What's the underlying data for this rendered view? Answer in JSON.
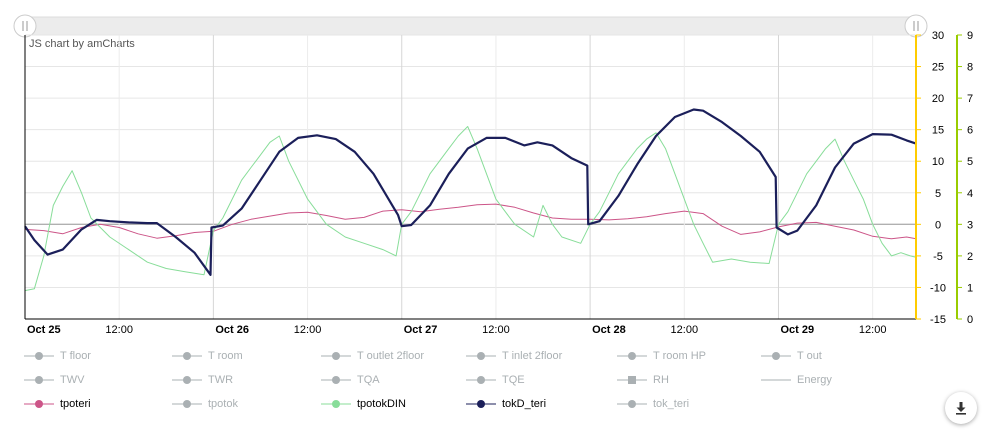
{
  "credit": "JS chart by amCharts",
  "chart_data": {
    "type": "line",
    "x_ticks": [
      {
        "label": "Oct 25",
        "bold": true,
        "day": 0
      },
      {
        "label": "12:00",
        "bold": false,
        "day": 0.5
      },
      {
        "label": "Oct 26",
        "bold": true,
        "day": 1
      },
      {
        "label": "12:00",
        "bold": false,
        "day": 1.5
      },
      {
        "label": "Oct 27",
        "bold": true,
        "day": 2
      },
      {
        "label": "12:00",
        "bold": false,
        "day": 2.5
      },
      {
        "label": "Oct 28",
        "bold": true,
        "day": 3
      },
      {
        "label": "12:00",
        "bold": false,
        "day": 3.5
      },
      {
        "label": "Oct 29",
        "bold": true,
        "day": 4
      },
      {
        "label": "12:00",
        "bold": false,
        "day": 4.5
      }
    ],
    "x_range_days": [
      0,
      4.73
    ],
    "y_left": {
      "min": -15,
      "max": 30,
      "ticks": [
        30,
        25,
        20,
        15,
        10,
        5,
        0,
        -5,
        -10,
        -15
      ],
      "color": "#ffcc00"
    },
    "y_right": {
      "min": 0,
      "max": 9,
      "ticks": [
        9,
        8,
        7,
        6,
        5,
        4,
        3,
        2,
        1,
        0
      ],
      "color": "#99cc00"
    },
    "grid": true,
    "legend_position": "bottom",
    "series": [
      {
        "name": "tpoteri",
        "color": "#cc5588",
        "visible": true,
        "axis": "left",
        "points": [
          [
            0,
            -0.8
          ],
          [
            0.1,
            -1
          ],
          [
            0.2,
            -1.5
          ],
          [
            0.3,
            -0.5
          ],
          [
            0.4,
            0
          ],
          [
            0.5,
            -0.5
          ],
          [
            0.6,
            -1.5
          ],
          [
            0.7,
            -2.2
          ],
          [
            0.8,
            -1.8
          ],
          [
            0.9,
            -1.3
          ],
          [
            1.0,
            -1.1
          ],
          [
            1.1,
            0
          ],
          [
            1.2,
            0.8
          ],
          [
            1.3,
            1.3
          ],
          [
            1.4,
            1.8
          ],
          [
            1.5,
            1.9
          ],
          [
            1.6,
            1.4
          ],
          [
            1.7,
            0.8
          ],
          [
            1.8,
            1.1
          ],
          [
            1.9,
            2.1
          ],
          [
            2.0,
            2.3
          ],
          [
            2.1,
            2.0
          ],
          [
            2.2,
            2.4
          ],
          [
            2.3,
            2.7
          ],
          [
            2.4,
            3.1
          ],
          [
            2.5,
            3.2
          ],
          [
            2.6,
            2.7
          ],
          [
            2.7,
            1.8
          ],
          [
            2.8,
            1.0
          ],
          [
            2.9,
            0.8
          ],
          [
            3.0,
            0.8
          ],
          [
            3.1,
            0.7
          ],
          [
            3.2,
            0.9
          ],
          [
            3.3,
            1.2
          ],
          [
            3.4,
            1.7
          ],
          [
            3.5,
            2.1
          ],
          [
            3.6,
            1.7
          ],
          [
            3.7,
            -0.3
          ],
          [
            3.8,
            -1.6
          ],
          [
            3.9,
            -1.2
          ],
          [
            4.0,
            -0.4
          ],
          [
            4.1,
            0.2
          ],
          [
            4.2,
            0.3
          ],
          [
            4.3,
            -0.3
          ],
          [
            4.4,
            -0.9
          ],
          [
            4.5,
            -1.9
          ],
          [
            4.6,
            -2.3
          ],
          [
            4.68,
            -2.0
          ],
          [
            4.73,
            -2.3
          ]
        ]
      },
      {
        "name": "tpotokDIN",
        "color": "#88dd99",
        "visible": true,
        "axis": "left",
        "points": [
          [
            0,
            -10.5
          ],
          [
            0.05,
            -10.2
          ],
          [
            0.1,
            -5
          ],
          [
            0.15,
            3
          ],
          [
            0.2,
            6
          ],
          [
            0.25,
            8.5
          ],
          [
            0.3,
            5
          ],
          [
            0.35,
            1
          ],
          [
            0.45,
            -2
          ],
          [
            0.55,
            -4
          ],
          [
            0.65,
            -6
          ],
          [
            0.75,
            -7
          ],
          [
            0.85,
            -7.5
          ],
          [
            0.95,
            -8
          ],
          [
            1.0,
            -1
          ],
          [
            1.05,
            1
          ],
          [
            1.1,
            4
          ],
          [
            1.15,
            7
          ],
          [
            1.2,
            9
          ],
          [
            1.25,
            11
          ],
          [
            1.3,
            13
          ],
          [
            1.35,
            14
          ],
          [
            1.4,
            10
          ],
          [
            1.5,
            4
          ],
          [
            1.6,
            0
          ],
          [
            1.7,
            -2
          ],
          [
            1.8,
            -3
          ],
          [
            1.9,
            -4
          ],
          [
            1.97,
            -5
          ],
          [
            2.0,
            0
          ],
          [
            2.05,
            2
          ],
          [
            2.1,
            5
          ],
          [
            2.15,
            8
          ],
          [
            2.2,
            10
          ],
          [
            2.25,
            12
          ],
          [
            2.3,
            14
          ],
          [
            2.35,
            15.5
          ],
          [
            2.4,
            12
          ],
          [
            2.45,
            8
          ],
          [
            2.5,
            4
          ],
          [
            2.55,
            2
          ],
          [
            2.6,
            0
          ],
          [
            2.7,
            -2
          ],
          [
            2.75,
            3
          ],
          [
            2.8,
            0
          ],
          [
            2.85,
            -2
          ],
          [
            2.95,
            -3
          ],
          [
            3.0,
            0
          ],
          [
            3.05,
            2
          ],
          [
            3.1,
            5
          ],
          [
            3.15,
            8
          ],
          [
            3.2,
            10
          ],
          [
            3.25,
            12
          ],
          [
            3.3,
            13.5
          ],
          [
            3.35,
            14.5
          ],
          [
            3.4,
            12
          ],
          [
            3.45,
            8
          ],
          [
            3.5,
            4
          ],
          [
            3.55,
            0
          ],
          [
            3.6,
            -3
          ],
          [
            3.65,
            -6
          ],
          [
            3.75,
            -5.5
          ],
          [
            3.85,
            -6
          ],
          [
            3.95,
            -6.2
          ],
          [
            4.0,
            0
          ],
          [
            4.05,
            2
          ],
          [
            4.1,
            5
          ],
          [
            4.15,
            8
          ],
          [
            4.2,
            10
          ],
          [
            4.25,
            12
          ],
          [
            4.3,
            13.5
          ],
          [
            4.35,
            10
          ],
          [
            4.4,
            7
          ],
          [
            4.45,
            4
          ],
          [
            4.5,
            0
          ],
          [
            4.55,
            -3
          ],
          [
            4.6,
            -5
          ],
          [
            4.65,
            -4.5
          ],
          [
            4.7,
            -5
          ],
          [
            4.73,
            -5.2
          ]
        ]
      },
      {
        "name": "tokD_teri",
        "color": "#1b1f5a",
        "visible": true,
        "axis": "left",
        "points": [
          [
            0,
            -0.3
          ],
          [
            0.05,
            -2.5
          ],
          [
            0.12,
            -4.8
          ],
          [
            0.2,
            -4
          ],
          [
            0.3,
            -0.8
          ],
          [
            0.38,
            0.7
          ],
          [
            0.45,
            0.5
          ],
          [
            0.55,
            0.3
          ],
          [
            0.65,
            0.2
          ],
          [
            0.7,
            0.2
          ],
          [
            0.8,
            -2
          ],
          [
            0.9,
            -4.5
          ],
          [
            0.985,
            -8
          ],
          [
            0.99,
            -0.5
          ],
          [
            1.05,
            -0.2
          ],
          [
            1.15,
            2.5
          ],
          [
            1.25,
            7
          ],
          [
            1.35,
            11.5
          ],
          [
            1.45,
            13.7
          ],
          [
            1.55,
            14.1
          ],
          [
            1.65,
            13.5
          ],
          [
            1.75,
            11.5
          ],
          [
            1.85,
            8
          ],
          [
            1.95,
            3
          ],
          [
            1.98,
            1.5
          ],
          [
            2.0,
            -0.3
          ],
          [
            2.05,
            -0.1
          ],
          [
            2.15,
            3
          ],
          [
            2.25,
            8
          ],
          [
            2.35,
            12
          ],
          [
            2.45,
            13.7
          ],
          [
            2.55,
            13.7
          ],
          [
            2.65,
            12.5
          ],
          [
            2.72,
            13
          ],
          [
            2.8,
            12.5
          ],
          [
            2.9,
            10.5
          ],
          [
            2.985,
            9.3
          ],
          [
            2.99,
            0
          ],
          [
            3.05,
            0.5
          ],
          [
            3.15,
            4.5
          ],
          [
            3.25,
            9.5
          ],
          [
            3.35,
            14
          ],
          [
            3.45,
            17
          ],
          [
            3.55,
            18.2
          ],
          [
            3.6,
            18
          ],
          [
            3.7,
            16.2
          ],
          [
            3.8,
            14
          ],
          [
            3.9,
            11.5
          ],
          [
            3.985,
            7.5
          ],
          [
            3.99,
            -0.5
          ],
          [
            4.05,
            -1.6
          ],
          [
            4.1,
            -1
          ],
          [
            4.2,
            3
          ],
          [
            4.3,
            9
          ],
          [
            4.4,
            12.8
          ],
          [
            4.5,
            14.3
          ],
          [
            4.6,
            14.2
          ],
          [
            4.68,
            13.3
          ],
          [
            4.73,
            12.8
          ]
        ]
      }
    ]
  },
  "legend": [
    {
      "label": "T floor",
      "marker": "circle",
      "color": "#aab0b3",
      "hidden": true
    },
    {
      "label": "T room",
      "marker": "circle",
      "color": "#aab0b3",
      "hidden": true
    },
    {
      "label": "T outlet 2floor",
      "marker": "circle",
      "color": "#aab0b3",
      "hidden": true
    },
    {
      "label": "T inlet 2floor",
      "marker": "circle",
      "color": "#aab0b3",
      "hidden": true
    },
    {
      "label": "T room HP",
      "marker": "circle",
      "color": "#aab0b3",
      "hidden": true
    },
    {
      "label": "T out",
      "marker": "circle",
      "color": "#aab0b3",
      "hidden": true
    },
    {
      "label": "TWV",
      "marker": "circle",
      "color": "#aab0b3",
      "hidden": true
    },
    {
      "label": "TWR",
      "marker": "circle",
      "color": "#aab0b3",
      "hidden": true
    },
    {
      "label": "TQA",
      "marker": "circle",
      "color": "#aab0b3",
      "hidden": true
    },
    {
      "label": "TQE",
      "marker": "circle",
      "color": "#aab0b3",
      "hidden": true
    },
    {
      "label": "RH",
      "marker": "square",
      "color": "#aab0b3",
      "hidden": true
    },
    {
      "label": "Energy",
      "marker": "line",
      "color": "#aab0b3",
      "hidden": true
    },
    {
      "label": "tpoteri",
      "marker": "circle",
      "color": "#cc5588",
      "hidden": false
    },
    {
      "label": "tpotok",
      "marker": "circle",
      "color": "#aab0b3",
      "hidden": true
    },
    {
      "label": "tpotokDIN",
      "marker": "circle",
      "color": "#88dd99",
      "hidden": false
    },
    {
      "label": "tokD_teri",
      "marker": "circle",
      "color": "#1b1f5a",
      "hidden": false
    },
    {
      "label": "tok_teri",
      "marker": "circle",
      "color": "#aab0b3",
      "hidden": true
    }
  ],
  "download_icon": "download-icon"
}
